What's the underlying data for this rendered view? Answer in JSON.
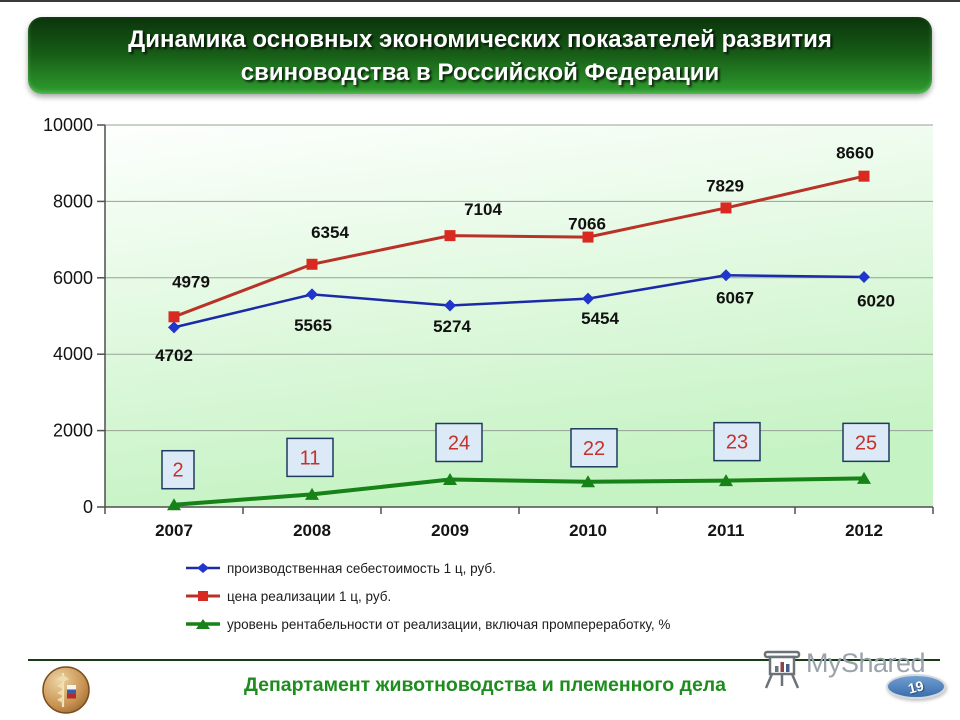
{
  "title": {
    "line1": "Динамика основных экономических показателей развития",
    "line2": "свиноводства в Российской Федерации"
  },
  "chart_data": {
    "type": "line",
    "categories": [
      "2007",
      "2008",
      "2009",
      "2010",
      "2011",
      "2012"
    ],
    "series": [
      {
        "name": "производственная себестоимость 1 ц, руб.",
        "values": [
          4702,
          5565,
          5274,
          5454,
          6067,
          6020
        ],
        "marker": "diamond",
        "line_color": "#1b2ba8",
        "marker_color": "#1f35cc",
        "line_width": 2.5,
        "plot_scale": 1,
        "label_style": "plain",
        "label_offsets": [
          [
            0,
            28
          ],
          [
            1,
            31
          ],
          [
            2,
            21
          ],
          [
            12,
            20
          ],
          [
            9,
            23
          ],
          [
            12,
            24
          ]
        ]
      },
      {
        "name": "цена реализации 1 ц, руб.",
        "values": [
          4979,
          6354,
          7104,
          7066,
          7829,
          8660
        ],
        "marker": "square",
        "line_color": "#b93227",
        "marker_color": "#d92a21",
        "line_width": 3,
        "plot_scale": 1,
        "label_style": "plain",
        "label_offsets": [
          [
            17,
            -35
          ],
          [
            18,
            -32
          ],
          [
            33,
            -26
          ],
          [
            -1,
            -13
          ],
          [
            -1,
            -22
          ],
          [
            -9,
            -23
          ]
        ]
      },
      {
        "name": "уровень рентабельности от  реализации, включая промпереработку, %",
        "values": [
          2,
          11,
          24,
          22,
          23,
          25
        ],
        "marker": "triangle",
        "line_color": "#178217",
        "marker_color": "#178217",
        "line_width": 4,
        "plot_scale": 30,
        "label_style": "boxed",
        "label_offsets": [
          [
            4,
            -35
          ],
          [
            -2,
            -37
          ],
          [
            9,
            -37
          ],
          [
            6,
            -34
          ],
          [
            11,
            -39
          ],
          [
            2,
            -36
          ]
        ]
      }
    ],
    "title": "",
    "xlabel": "",
    "ylabel": "",
    "ylim": [
      0,
      10000
    ],
    "yticks": [
      0,
      2000,
      4000,
      6000,
      8000,
      10000
    ],
    "grid": true,
    "legend_position": "bottom-left",
    "plot_bg": [
      "#fdfffd",
      "#c6f3c4"
    ],
    "grid_color": "#97a297",
    "axis_color": "#4f4f4f",
    "label_color": "#111111",
    "box_fill": "#dce9f6",
    "box_border": "#1d3b5e",
    "box_text_color": "#c5312b"
  },
  "footer": {
    "department": "Департамент животноводства и племенного дела",
    "watermark": "MyShared",
    "page_number": "19"
  },
  "colors": {
    "banner_top": "#0b340b",
    "banner_bottom": "#2f9e2f",
    "footer_text": "#1e8c1e",
    "badge_blue": "#3c6eae"
  }
}
